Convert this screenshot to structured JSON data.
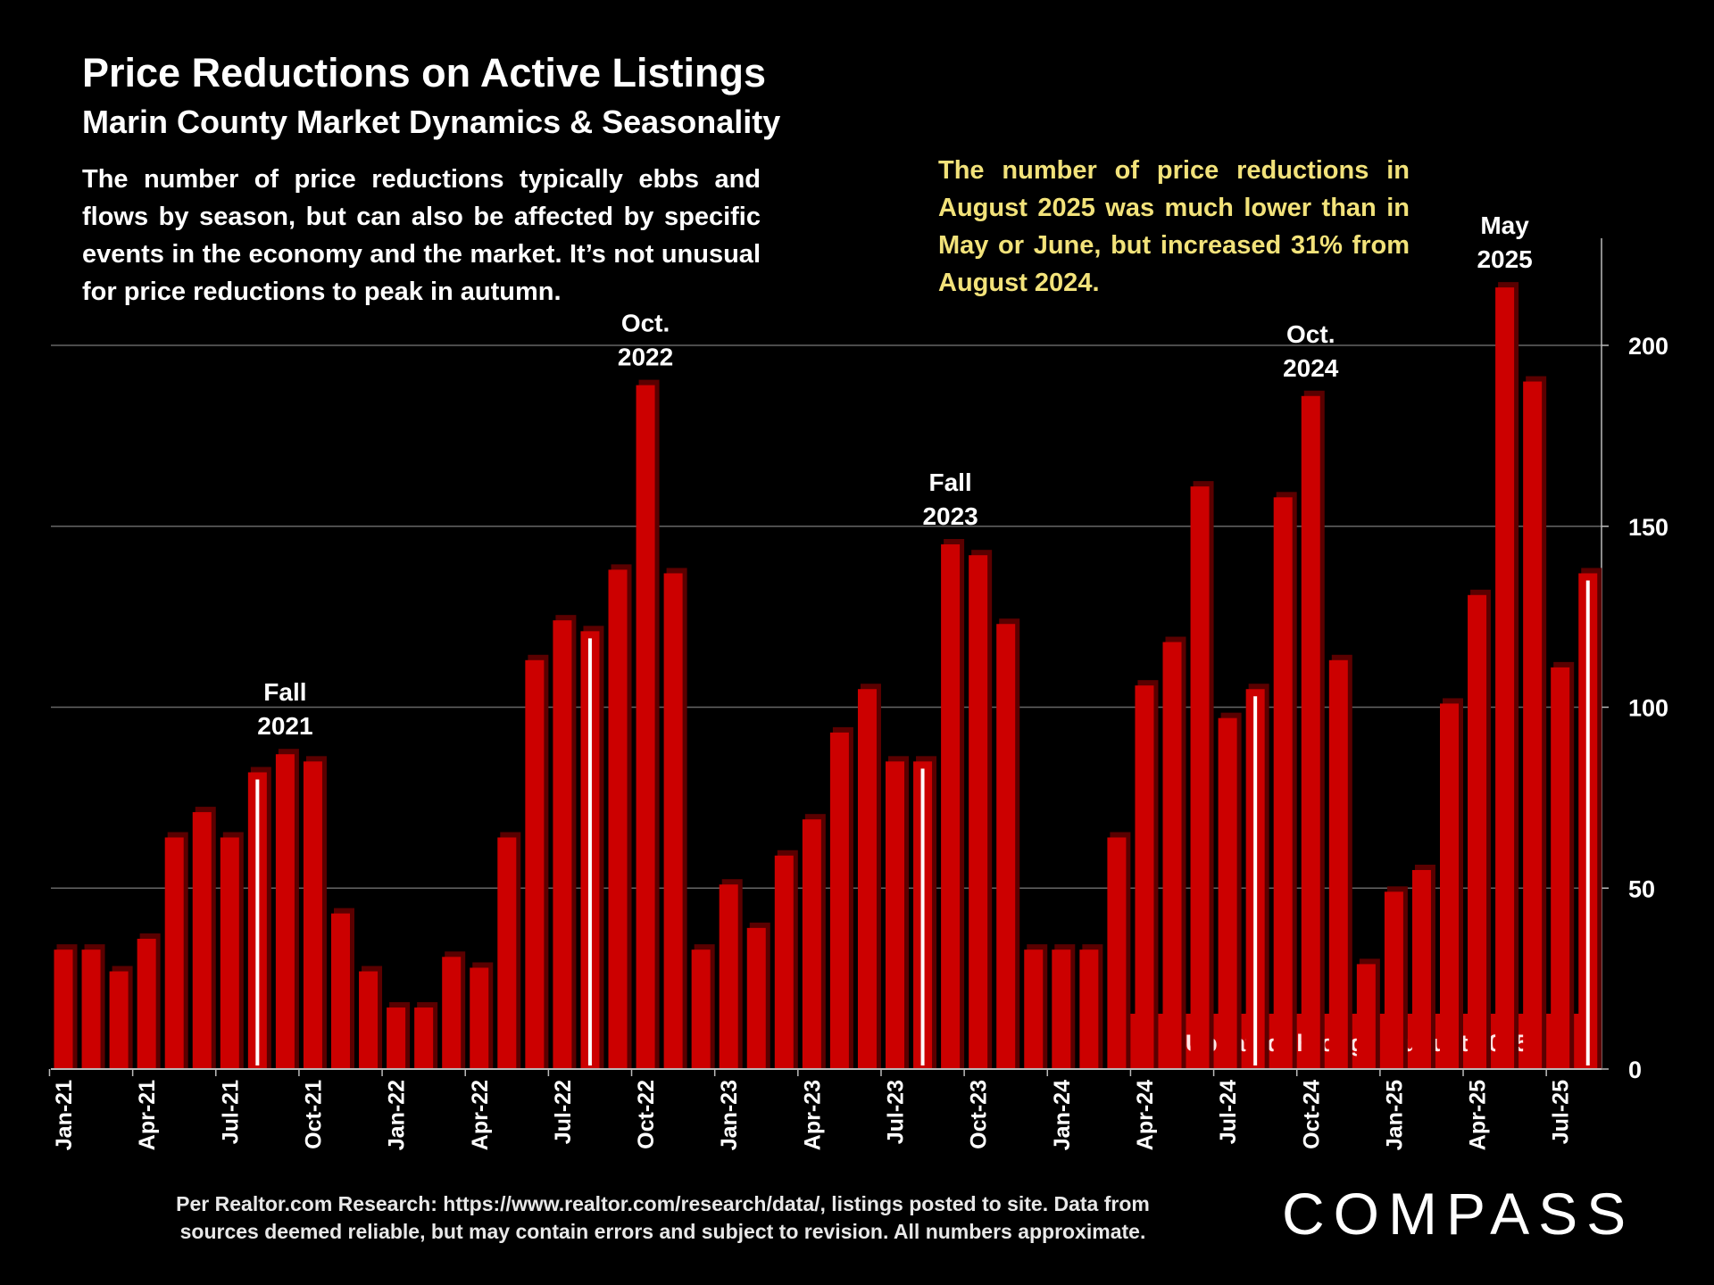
{
  "title": "Price Reductions on Active Listings",
  "subtitle": "Marin County Market Dynamics & Seasonality",
  "description": "The number of price reductions typically ebbs and flows by season, but can also be affected by specific events in the economy and the market. It’s not unusual for price reductions to peak in autumn.",
  "highlight_note": "The number of price reductions in August 2025 was much lower than in May or June, but increased 31% from August 2024.",
  "updated_banner": "Updated through August 2025",
  "footnote_line1": "Per Realtor.com Research:  https://www.realtor.com/research/data/, listings posted to site. Data from",
  "footnote_line2": "sources deemed reliable, but may contain errors and subject to revision. All numbers approximate.",
  "logo": "COMPASS",
  "colors": {
    "bar": "#cc0000",
    "bar_shadow": "#5a0000",
    "august_marker": "#ffffff",
    "note": "#f2e27a"
  },
  "chart_data": {
    "type": "bar",
    "title": "Price Reductions on Active Listings",
    "xlabel": "",
    "ylabel": "",
    "ylim": [
      0,
      230
    ],
    "yticks": [
      0,
      50,
      100,
      150,
      200
    ],
    "grid": true,
    "y_axis_side": "right",
    "categories": [
      "Jan-21",
      "Feb-21",
      "Mar-21",
      "Apr-21",
      "May-21",
      "Jun-21",
      "Jul-21",
      "Aug-21",
      "Sep-21",
      "Oct-21",
      "Nov-21",
      "Dec-21",
      "Jan-22",
      "Feb-22",
      "Mar-22",
      "Apr-22",
      "May-22",
      "Jun-22",
      "Jul-22",
      "Aug-22",
      "Sep-22",
      "Oct-22",
      "Nov-22",
      "Dec-22",
      "Jan-23",
      "Feb-23",
      "Mar-23",
      "Apr-23",
      "May-23",
      "Jun-23",
      "Jul-23",
      "Aug-23",
      "Sep-23",
      "Oct-23",
      "Nov-23",
      "Dec-23",
      "Jan-24",
      "Feb-24",
      "Mar-24",
      "Apr-24",
      "May-24",
      "Jun-24",
      "Jul-24",
      "Aug-24",
      "Sep-24",
      "Oct-24",
      "Nov-24",
      "Dec-24",
      "Jan-25",
      "Feb-25",
      "Mar-25",
      "Apr-25",
      "May-25",
      "Jun-25",
      "Jul-25",
      "Aug-25"
    ],
    "values": [
      33,
      33,
      27,
      36,
      64,
      71,
      64,
      82,
      87,
      85,
      43,
      27,
      17,
      17,
      31,
      28,
      64,
      113,
      124,
      121,
      138,
      189,
      137,
      33,
      51,
      39,
      59,
      69,
      93,
      105,
      85,
      85,
      145,
      142,
      123,
      33,
      33,
      33,
      64,
      106,
      118,
      161,
      97,
      105,
      158,
      186,
      113,
      29,
      49,
      55,
      101,
      131,
      216,
      190,
      111,
      137
    ],
    "tick_labels": [
      "Jan-21",
      "Apr-21",
      "Jul-21",
      "Oct-21",
      "Jan-22",
      "Apr-22",
      "Jul-22",
      "Oct-22",
      "Jan-23",
      "Apr-23",
      "Jul-23",
      "Oct-23",
      "Jan-24",
      "Apr-24",
      "Jul-24",
      "Oct-24",
      "Jan-25",
      "Apr-25",
      "Jul-25"
    ],
    "august_markers": [
      "Aug-21",
      "Aug-22",
      "Aug-23",
      "Aug-24",
      "Aug-25"
    ],
    "annotations": [
      {
        "at": "Sep-21",
        "line1": "Fall",
        "line2": "2021"
      },
      {
        "at": "Oct-22",
        "line1": "Oct.",
        "line2": "2022"
      },
      {
        "at": "Sep-23",
        "line1": "Fall",
        "line2": "2023"
      },
      {
        "at": "Oct-24",
        "line1": "Oct.",
        "line2": "2024"
      },
      {
        "at": "May-25",
        "line1": "May",
        "line2": "2025"
      }
    ]
  }
}
